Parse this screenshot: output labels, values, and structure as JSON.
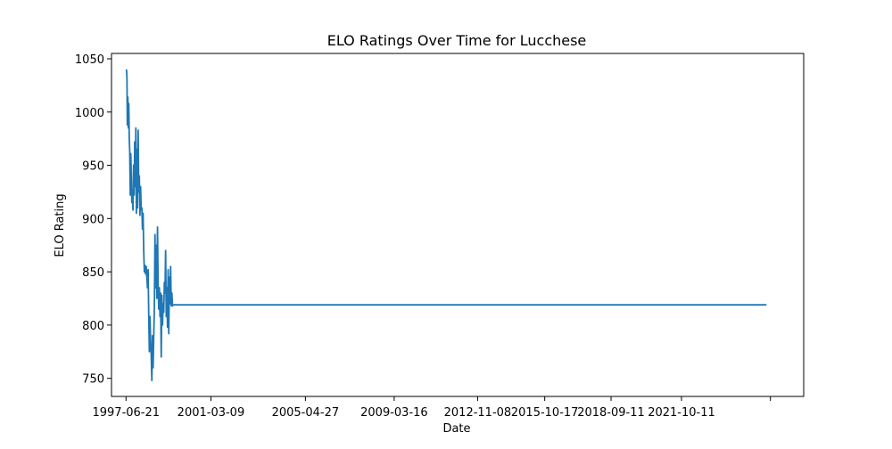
{
  "chart_data": {
    "type": "line",
    "title": "ELO Ratings Over Time for Lucchese",
    "xlabel": "Date",
    "ylabel": "ELO Rating",
    "x_type": "date",
    "xlim": [
      "1996-11-01",
      "2027-02-15"
    ],
    "ylim": [
      733,
      1055
    ],
    "grid": false,
    "legend": "none",
    "line_color": "#1f77b4",
    "x_ticks": [
      {
        "value": "1997-06-21",
        "label": "1997-06-21"
      },
      {
        "value": "2001-03-09",
        "label": "2001-03-09"
      },
      {
        "value": "2005-04-27",
        "label": "2005-04-27"
      },
      {
        "value": "2009-03-16",
        "label": "2009-03-16"
      },
      {
        "value": "2012-11-08",
        "label": "2012-11-08"
      },
      {
        "value": "2015-10-17",
        "label": "2015-10-17"
      },
      {
        "value": "2018-09-11",
        "label": "2018-09-11"
      },
      {
        "value": "2021-10-11",
        "label": "2021-10-11"
      },
      {
        "value": "2025-09-01",
        "label": ""
      }
    ],
    "y_ticks": [
      750,
      800,
      850,
      900,
      950,
      1000,
      1050
    ],
    "series": [
      {
        "x": [
          "1997-06-21",
          "1997-06-30",
          "1997-07-06",
          "1997-07-12",
          "1997-07-20",
          "1997-07-28",
          "1997-08-04",
          "1997-08-12",
          "1997-08-20",
          "1997-08-28",
          "1997-09-05",
          "1997-09-14",
          "1997-09-22",
          "1997-10-01",
          "1997-10-10",
          "1997-10-20",
          "1997-10-29",
          "1997-11-07",
          "1997-11-16",
          "1997-11-25",
          "1997-12-04",
          "1997-12-13",
          "1997-12-22",
          "1998-01-01",
          "1998-01-10",
          "1998-01-20",
          "1998-01-30",
          "1998-02-09",
          "1998-02-19",
          "1998-03-01",
          "1998-03-11",
          "1998-03-21",
          "1998-03-31",
          "1998-04-10",
          "1998-04-20",
          "1998-04-30",
          "1998-05-10",
          "1998-05-20",
          "1998-05-30",
          "1998-06-09",
          "1998-06-19",
          "1998-06-29",
          "1998-07-09",
          "1998-07-19",
          "1998-07-29",
          "1998-08-08",
          "1998-08-18",
          "1998-08-28",
          "1998-09-07",
          "1998-09-17",
          "1998-09-27",
          "1998-10-07",
          "1998-10-17",
          "1998-10-27",
          "1998-11-06",
          "1998-11-16",
          "1998-11-26",
          "1998-12-06",
          "1998-12-16",
          "1998-12-26",
          "1999-01-05",
          "1999-01-15",
          "1999-01-25",
          "1999-02-04",
          "1999-02-14",
          "1999-02-24",
          "1999-03-06",
          "1999-03-16",
          "1999-03-26",
          "1999-04-05",
          "1999-04-15",
          "1999-04-25",
          "1999-05-05",
          "1999-05-15",
          "1999-05-25",
          "1999-06-04",
          "1999-06-14",
          "1999-06-24",
          "1999-07-04",
          "1999-07-14",
          "1999-07-24",
          "1999-08-03",
          "1999-08-13",
          "1999-08-23",
          "1999-09-02",
          "1999-09-12",
          "1999-09-22",
          "1999-10-02",
          "1999-10-12",
          "1999-10-22",
          "1999-11-01",
          "1999-11-11",
          "1999-11-21",
          "1999-12-01",
          "1999-12-11",
          "1999-12-21",
          "1999-12-31",
          "2000-01-10",
          "2000-01-20",
          "2000-01-30",
          "2000-02-09",
          "2000-02-19",
          "2000-03-01",
          "2000-03-11",
          "2000-03-21",
          "2000-03-31",
          "2000-04-10",
          "2000-04-20",
          "2000-04-30",
          "2000-05-10",
          "2000-05-20",
          "2000-05-31",
          "2025-06-30"
        ],
        "y": [
          1040,
          1039,
          1032,
          988,
          1014,
          985,
          1008,
          975,
          962,
          922,
          961,
          940,
          915,
          922,
          908,
          950,
          922,
          972,
          930,
          985,
          905,
          965,
          910,
          983,
          925,
          940,
          903,
          930,
          908,
          910,
          890,
          905,
          870,
          850,
          856,
          848,
          855,
          845,
          835,
          852,
          810,
          775,
          808,
          785,
          772,
          748,
          790,
          760,
          790,
          815,
          885,
          835,
          875,
          825,
          892,
          840,
          815,
          835,
          808,
          830,
          770,
          828,
          800,
          820,
          812,
          840,
          830,
          870,
          808,
          835,
          798,
          852,
          792,
          845,
          820,
          855,
          818,
          830,
          818,
          819,
          819,
          819,
          819,
          819,
          819,
          819,
          819,
          819,
          819,
          819,
          819,
          819,
          819,
          819,
          819,
          819,
          819,
          819,
          819,
          819,
          819,
          819,
          819,
          819,
          819,
          819,
          819,
          819,
          819,
          819,
          819,
          819,
          819
        ]
      }
    ]
  }
}
